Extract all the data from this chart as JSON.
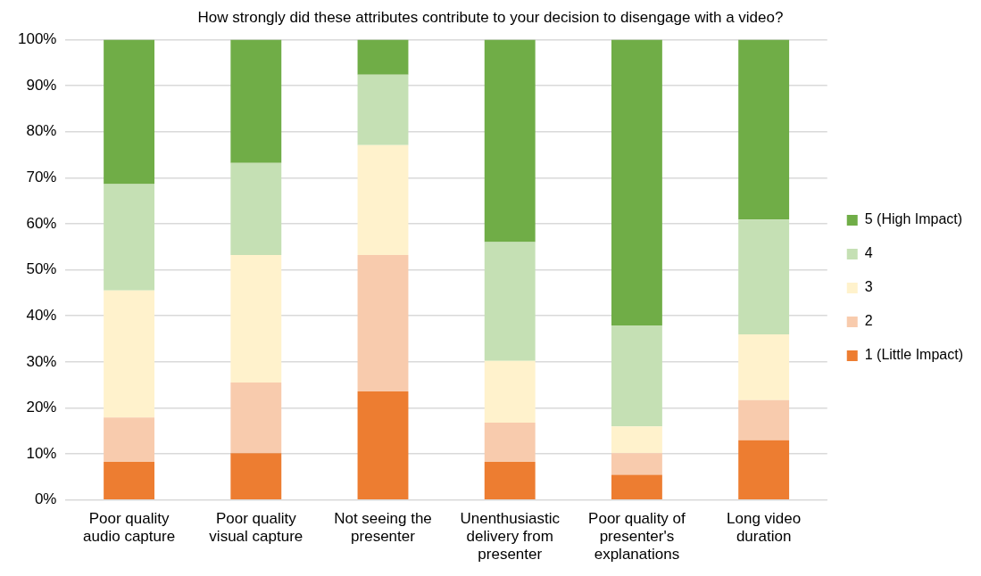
{
  "chart_data": {
    "type": "bar",
    "stacked": true,
    "title": "How strongly did these attributes contribute to your decision to disengage with a video?",
    "categories": [
      "Poor quality audio capture",
      "Poor quality visual capture",
      "Not seeing the presenter",
      "Unenthusiastic delivery from presenter",
      "Poor quality of presenter's explanations",
      "Long video duration"
    ],
    "series": [
      {
        "name": "1 (Little Impact)",
        "color": "#ed7d31",
        "values": [
          8.3,
          10.2,
          23.6,
          8.3,
          5.5,
          13.0
        ]
      },
      {
        "name": "2",
        "color": "#f8cbad",
        "values": [
          9.6,
          15.3,
          29.6,
          8.5,
          4.7,
          8.7
        ]
      },
      {
        "name": "3",
        "color": "#fff2cc",
        "values": [
          27.6,
          27.7,
          23.9,
          13.4,
          5.8,
          14.3
        ]
      },
      {
        "name": "4",
        "color": "#c5e0b4",
        "values": [
          23.1,
          20.0,
          15.3,
          25.8,
          21.9,
          24.9
        ]
      },
      {
        "name": "5 (High Impact)",
        "color": "#70ad47",
        "values": [
          31.4,
          26.8,
          7.6,
          44.0,
          62.1,
          39.1
        ]
      }
    ],
    "ylim": [
      0,
      100
    ],
    "yticks": [
      {
        "value": 0,
        "label": "0%"
      },
      {
        "value": 10,
        "label": "10%"
      },
      {
        "value": 20,
        "label": "20%"
      },
      {
        "value": 30,
        "label": "30%"
      },
      {
        "value": 40,
        "label": "40%"
      },
      {
        "value": 50,
        "label": "50%"
      },
      {
        "value": 60,
        "label": "60%"
      },
      {
        "value": 70,
        "label": "70%"
      },
      {
        "value": 80,
        "label": "80%"
      },
      {
        "value": 90,
        "label": "90%"
      },
      {
        "value": 100,
        "label": "100%"
      }
    ],
    "grid": "y",
    "legend": "right"
  }
}
